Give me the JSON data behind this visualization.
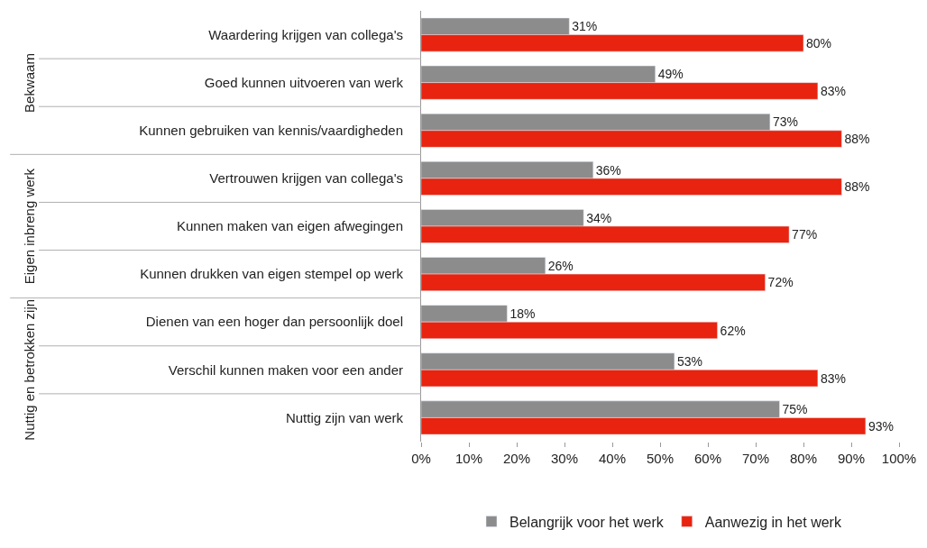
{
  "chart_data": {
    "type": "bar",
    "orientation": "horizontal",
    "categories": [
      "Waardering krijgen van collega's",
      "Goed kunnen uitvoeren van werk",
      "Kunnen gebruiken van kennis/vaardigheden",
      "Vertrouwen krijgen van collega's",
      "Kunnen maken van eigen afwegingen",
      "Kunnen drukken van eigen stempel op werk",
      "Dienen van een hoger dan persoonlijk doel",
      "Verschil kunnen maken voor een ander",
      "Nuttig zijn van werk"
    ],
    "series": [
      {
        "name": "Belangrijk voor het werk",
        "color": "#8c8c8c",
        "values": [
          31,
          49,
          73,
          36,
          34,
          26,
          18,
          53,
          75
        ],
        "value_labels": [
          "31%",
          "49%",
          "73%",
          "36%",
          "34%",
          "26%",
          "18%",
          "53%",
          "75%"
        ]
      },
      {
        "name": "Aanwezig in het werk",
        "color": "#e8230f",
        "values": [
          80,
          83,
          88,
          88,
          77,
          72,
          62,
          83,
          93
        ],
        "value_labels": [
          "80%",
          "83%",
          "88%",
          "88%",
          "77%",
          "72%",
          "62%",
          "83%",
          "93%"
        ]
      }
    ],
    "annotations": [
      "Bekwaam",
      "Eigen inbreng werk",
      "Nuttig en betrokken zijn"
    ],
    "xlim": [
      0,
      100
    ],
    "xticks": [
      {
        "value": 0,
        "label": "0%"
      },
      {
        "value": 10,
        "label": "10%"
      },
      {
        "value": 20,
        "label": "20%"
      },
      {
        "value": 30,
        "label": "30%"
      },
      {
        "value": 40,
        "label": "40%"
      },
      {
        "value": 50,
        "label": "50%"
      },
      {
        "value": 60,
        "label": "60%"
      },
      {
        "value": 70,
        "label": "70%"
      },
      {
        "value": 80,
        "label": "80%"
      },
      {
        "value": 90,
        "label": "90%"
      },
      {
        "value": 100,
        "label": "100%"
      }
    ],
    "legend": "bottom",
    "grid": false
  }
}
